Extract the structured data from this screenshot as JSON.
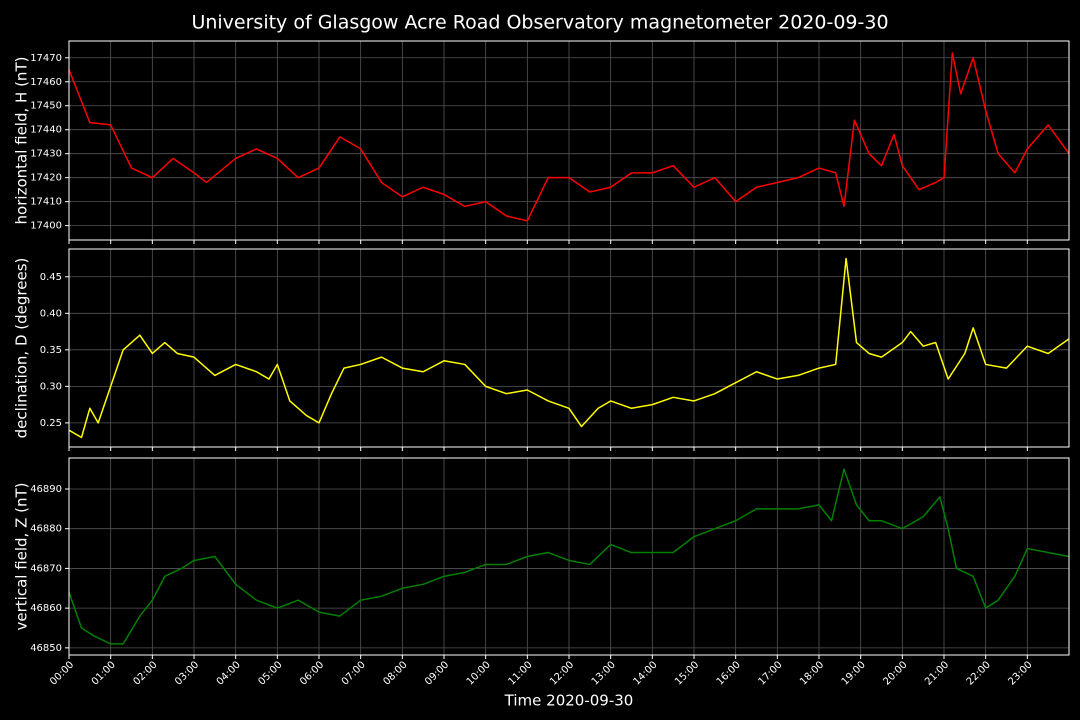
{
  "title": "University of Glasgow Acre Road Observatory magnetometer 2020-09-30",
  "chart_data": [
    {
      "type": "line",
      "ylabel": "horizontal field, H (nT)",
      "grid": true,
      "xlim": [
        0,
        24
      ],
      "ylim": [
        17394,
        17477
      ],
      "yticks": [
        17400,
        17410,
        17420,
        17430,
        17440,
        17450,
        17460,
        17470
      ],
      "x": [
        0,
        0.5,
        1,
        1.5,
        2,
        2.5,
        3,
        3.3,
        4,
        4.5,
        5,
        5.5,
        6,
        6.5,
        7,
        7.5,
        8,
        8.5,
        9,
        9.5,
        10,
        10.5,
        11,
        11.5,
        12,
        12.5,
        13,
        13.5,
        14,
        14.5,
        15,
        15.5,
        16,
        16.5,
        17,
        17.5,
        18,
        18.4,
        18.6,
        18.85,
        19.2,
        19.5,
        19.8,
        20,
        20.4,
        20.8,
        21,
        21.2,
        21.4,
        21.7,
        22,
        22.3,
        22.7,
        23,
        23.5,
        24
      ],
      "series": [
        {
          "name": "H",
          "color": "#ff0000",
          "values": [
            17465,
            17443,
            17442,
            17424,
            17420,
            17428,
            17422,
            17418,
            17428,
            17432,
            17428,
            17420,
            17424,
            17437,
            17432,
            17418,
            17412,
            17416,
            17413,
            17408,
            17410,
            17404,
            17402,
            17420,
            17420,
            17414,
            17416,
            17422,
            17422,
            17425,
            17416,
            17420,
            17410,
            17416,
            17418,
            17420,
            17424,
            17422,
            17408,
            17444,
            17430,
            17425,
            17438,
            17425,
            17415,
            17418,
            17420,
            17472,
            17455,
            17470,
            17448,
            17430,
            17422,
            17432,
            17442,
            17430
          ]
        }
      ]
    },
    {
      "type": "line",
      "ylabel": "declination, D (degrees)",
      "grid": true,
      "xlim": [
        0,
        24
      ],
      "ylim": [
        0.217,
        0.488
      ],
      "yticks": [
        0.25,
        {
          "value": 0.3,
          "label": "0.30"
        },
        0.35,
        {
          "value": 0.4,
          "label": "0.40"
        },
        0.45
      ],
      "x": [
        0,
        0.3,
        0.5,
        0.7,
        1,
        1.3,
        1.7,
        2,
        2.3,
        2.6,
        3,
        3.5,
        4,
        4.5,
        4.8,
        5,
        5.3,
        5.7,
        6,
        6.3,
        6.6,
        7,
        7.5,
        8,
        8.5,
        9,
        9.5,
        10,
        10.5,
        11,
        11.5,
        12,
        12.3,
        12.7,
        13,
        13.5,
        14,
        14.5,
        15,
        15.5,
        16,
        16.5,
        17,
        17.5,
        18,
        18.4,
        18.65,
        18.9,
        19.2,
        19.5,
        20,
        20.2,
        20.5,
        20.8,
        21.1,
        21.5,
        21.7,
        22,
        22.5,
        23,
        23.5,
        24
      ],
      "series": [
        {
          "name": "D",
          "color": "#ffff00",
          "values": [
            0.24,
            0.23,
            0.27,
            0.25,
            0.3,
            0.35,
            0.37,
            0.345,
            0.36,
            0.345,
            0.34,
            0.315,
            0.33,
            0.32,
            0.31,
            0.33,
            0.28,
            0.26,
            0.25,
            0.29,
            0.325,
            0.33,
            0.34,
            0.325,
            0.32,
            0.335,
            0.33,
            0.3,
            0.29,
            0.295,
            0.28,
            0.27,
            0.245,
            0.27,
            0.28,
            0.27,
            0.275,
            0.285,
            0.28,
            0.29,
            0.305,
            0.32,
            0.31,
            0.315,
            0.325,
            0.33,
            0.475,
            0.36,
            0.345,
            0.34,
            0.36,
            0.375,
            0.355,
            0.36,
            0.31,
            0.345,
            0.38,
            0.33,
            0.325,
            0.355,
            0.345,
            0.365
          ]
        }
      ]
    },
    {
      "type": "line",
      "ylabel": "vertical field, Z (nT)",
      "xlabel": "Time 2020-09-30",
      "grid": true,
      "xlim": [
        0,
        24
      ],
      "ylim": [
        46848.2,
        46897.8
      ],
      "yticks": [
        46850,
        46860,
        46870,
        46880,
        46890
      ],
      "xticks": [
        {
          "value": 0,
          "label": "00:00"
        },
        {
          "value": 1,
          "label": "01:00"
        },
        {
          "value": 2,
          "label": "02:00"
        },
        {
          "value": 3,
          "label": "03:00"
        },
        {
          "value": 4,
          "label": "04:00"
        },
        {
          "value": 5,
          "label": "05:00"
        },
        {
          "value": 6,
          "label": "06:00"
        },
        {
          "value": 7,
          "label": "07:00"
        },
        {
          "value": 8,
          "label": "08:00"
        },
        {
          "value": 9,
          "label": "09:00"
        },
        {
          "value": 10,
          "label": "10:00"
        },
        {
          "value": 11,
          "label": "11:00"
        },
        {
          "value": 12,
          "label": "12:00"
        },
        {
          "value": 13,
          "label": "13:00"
        },
        {
          "value": 14,
          "label": "14:00"
        },
        {
          "value": 15,
          "label": "15:00"
        },
        {
          "value": 16,
          "label": "16:00"
        },
        {
          "value": 17,
          "label": "17:00"
        },
        {
          "value": 18,
          "label": "18:00"
        },
        {
          "value": 19,
          "label": "19:00"
        },
        {
          "value": 20,
          "label": "20:00"
        },
        {
          "value": 21,
          "label": "21:00"
        },
        {
          "value": 22,
          "label": "22:00"
        },
        {
          "value": 23,
          "label": "23:00"
        }
      ],
      "x": [
        0,
        0.3,
        0.6,
        1,
        1.3,
        1.7,
        2,
        2.3,
        2.7,
        3,
        3.5,
        4,
        4.5,
        5,
        5.5,
        6,
        6.5,
        7,
        7.5,
        8,
        8.5,
        9,
        9.5,
        10,
        10.5,
        11,
        11.5,
        12,
        12.5,
        13,
        13.5,
        14,
        14.5,
        15,
        15.5,
        16,
        16.5,
        17,
        17.5,
        18,
        18.3,
        18.6,
        18.9,
        19.2,
        19.5,
        20,
        20.5,
        20.9,
        21.1,
        21.3,
        21.7,
        22,
        22.3,
        22.7,
        23,
        23.5,
        24
      ],
      "series": [
        {
          "name": "Z",
          "color": "#008000",
          "values": [
            46864,
            46855,
            46853,
            46851,
            46851,
            46858,
            46862,
            46868,
            46870,
            46872,
            46873,
            46866,
            46862,
            46860,
            46862,
            46859,
            46858,
            46862,
            46863,
            46865,
            46866,
            46868,
            46869,
            46871,
            46871,
            46873,
            46874,
            46872,
            46871,
            46876,
            46874,
            46874,
            46874,
            46878,
            46880,
            46882,
            46885,
            46885,
            46885,
            46886,
            46882,
            46895,
            46886,
            46882,
            46882,
            46880,
            46883,
            46888,
            46880,
            46870,
            46868,
            46860,
            46862,
            46868,
            46875,
            46874,
            46873
          ]
        }
      ]
    }
  ]
}
